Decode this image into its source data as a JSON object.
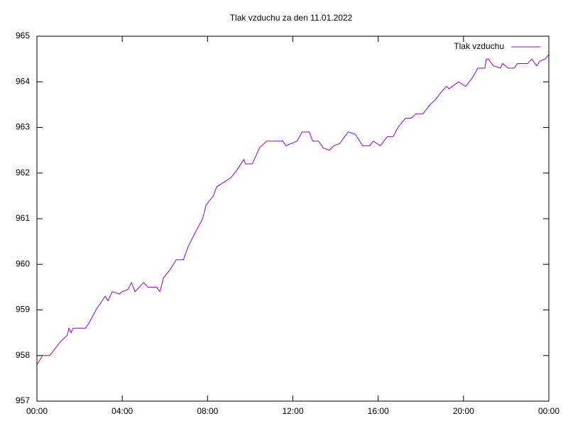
{
  "chart_data": {
    "type": "line",
    "title": "Tlak vzduchu za den 11.01.2022",
    "series": [
      {
        "name": "Tlak vzduchu",
        "color": "#9400d3",
        "x": [
          0,
          0.27,
          0.6,
          0.77,
          1.1,
          1.43,
          1.5,
          1.6,
          1.7,
          2.27,
          2.43,
          2.77,
          3.2,
          3.33,
          3.53,
          3.87,
          4.0,
          4.27,
          4.43,
          4.6,
          5.0,
          5.2,
          5.6,
          5.77,
          5.93,
          6.27,
          6.53,
          6.87,
          7.1,
          7.43,
          7.77,
          7.93,
          8.27,
          8.43,
          8.77,
          9.1,
          9.43,
          9.7,
          9.77,
          10.1,
          10.43,
          10.77,
          11.53,
          11.67,
          12.2,
          12.43,
          12.77,
          12.93,
          13.2,
          13.43,
          13.7,
          13.93,
          14.2,
          14.43,
          14.6,
          14.93,
          15.27,
          15.6,
          15.77,
          16.1,
          16.43,
          16.7,
          16.93,
          17.27,
          17.53,
          17.77,
          18.1,
          18.43,
          18.67,
          19.0,
          19.2,
          19.33,
          19.77,
          20.1,
          20.43,
          20.67,
          21.0,
          21.07,
          21.17,
          21.4,
          21.73,
          21.83,
          22.1,
          22.37,
          22.53,
          23.0,
          23.2,
          23.43,
          23.57,
          23.83,
          24.0
        ],
        "values": [
          957.8,
          958.0,
          958.0,
          958.1,
          958.3,
          958.45,
          958.6,
          958.5,
          958.6,
          958.6,
          958.7,
          959.0,
          959.3,
          959.2,
          959.4,
          959.35,
          959.4,
          959.45,
          959.6,
          959.4,
          959.6,
          959.5,
          959.5,
          959.4,
          959.7,
          959.9,
          960.1,
          960.1,
          960.4,
          960.7,
          961.0,
          961.3,
          961.5,
          961.7,
          961.8,
          961.9,
          962.1,
          962.3,
          962.2,
          962.2,
          962.55,
          962.7,
          962.7,
          962.6,
          962.7,
          962.9,
          962.9,
          962.7,
          962.7,
          962.55,
          962.5,
          962.6,
          962.65,
          962.8,
          962.9,
          962.85,
          962.6,
          962.6,
          962.7,
          962.6,
          962.8,
          962.8,
          963.0,
          963.2,
          963.2,
          963.3,
          963.3,
          963.5,
          963.6,
          963.8,
          963.9,
          963.85,
          964.0,
          963.9,
          964.1,
          964.3,
          964.3,
          964.5,
          964.5,
          964.35,
          964.3,
          964.4,
          964.3,
          964.3,
          964.4,
          964.4,
          964.5,
          964.35,
          964.45,
          964.5,
          964.6
        ]
      }
    ],
    "xlim": [
      0,
      24
    ],
    "xticks": [
      {
        "value": 0,
        "label": "00:00"
      },
      {
        "value": 4,
        "label": "04:00"
      },
      {
        "value": 8,
        "label": "08:00"
      },
      {
        "value": 12,
        "label": "12:00"
      },
      {
        "value": 16,
        "label": "16:00"
      },
      {
        "value": 20,
        "label": "20:00"
      },
      {
        "value": 24,
        "label": "00:00"
      }
    ],
    "ylim": [
      957,
      965
    ],
    "yticks": [
      957,
      958,
      959,
      960,
      961,
      962,
      963,
      964,
      965
    ],
    "legend": "top-right"
  }
}
